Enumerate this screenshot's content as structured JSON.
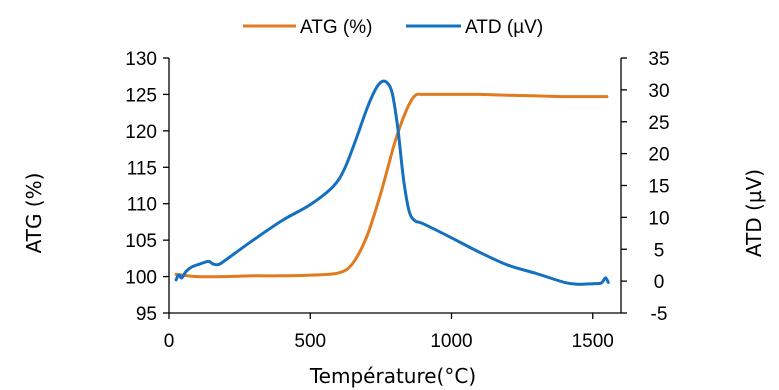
{
  "chart_data": {
    "type": "line",
    "title": "",
    "xlabel": "Température(°C)",
    "ylabel_left": "ATG (%)",
    "ylabel_right": "ATD (µV)",
    "xlim": [
      0,
      1600
    ],
    "ylim_left": [
      95,
      130
    ],
    "ylim_right": [
      -5,
      35
    ],
    "x_ticks": [
      "0",
      "500",
      "1000",
      "1500"
    ],
    "y_left_ticks": [
      "95",
      "100",
      "105",
      "110",
      "115",
      "120",
      "125",
      "130"
    ],
    "y_right_ticks": [
      "-5",
      "0",
      "5",
      "10",
      "15",
      "20",
      "25",
      "30",
      "35"
    ],
    "grid": false,
    "legend_position": "top",
    "series": [
      {
        "name": "ATG (%)",
        "color": "#E07B20",
        "axis": "left",
        "points": [
          [
            25,
            100.3
          ],
          [
            100,
            100.0
          ],
          [
            200,
            100.0
          ],
          [
            300,
            100.1
          ],
          [
            400,
            100.1
          ],
          [
            500,
            100.2
          ],
          [
            600,
            100.5
          ],
          [
            650,
            101.8
          ],
          [
            700,
            105.5
          ],
          [
            750,
            111.5
          ],
          [
            800,
            118.5
          ],
          [
            840,
            122.8
          ],
          [
            870,
            124.8
          ],
          [
            900,
            125.0
          ],
          [
            1000,
            125.0
          ],
          [
            1100,
            125.0
          ],
          [
            1200,
            124.9
          ],
          [
            1300,
            124.8
          ],
          [
            1400,
            124.7
          ],
          [
            1500,
            124.7
          ],
          [
            1550,
            124.7
          ]
        ]
      },
      {
        "name": "ATD (µV)",
        "color": "#1570C0",
        "axis": "right",
        "points": [
          [
            25,
            0.2
          ],
          [
            35,
            1.0
          ],
          [
            45,
            0.5
          ],
          [
            60,
            1.5
          ],
          [
            80,
            2.2
          ],
          [
            110,
            2.7
          ],
          [
            140,
            3.1
          ],
          [
            155,
            2.7
          ],
          [
            175,
            2.6
          ],
          [
            200,
            3.3
          ],
          [
            300,
            6.5
          ],
          [
            400,
            9.5
          ],
          [
            500,
            12.0
          ],
          [
            580,
            14.8
          ],
          [
            620,
            17.5
          ],
          [
            660,
            22.0
          ],
          [
            700,
            27.0
          ],
          [
            730,
            30.0
          ],
          [
            750,
            31.2
          ],
          [
            770,
            31.2
          ],
          [
            790,
            29.5
          ],
          [
            810,
            24.0
          ],
          [
            830,
            16.0
          ],
          [
            850,
            11.0
          ],
          [
            870,
            9.5
          ],
          [
            900,
            9.0
          ],
          [
            1000,
            6.8
          ],
          [
            1100,
            4.5
          ],
          [
            1200,
            2.5
          ],
          [
            1300,
            1.2
          ],
          [
            1400,
            -0.2
          ],
          [
            1450,
            -0.5
          ],
          [
            1500,
            -0.4
          ],
          [
            1530,
            -0.3
          ],
          [
            1545,
            0.5
          ],
          [
            1555,
            -0.2
          ]
        ]
      }
    ]
  }
}
